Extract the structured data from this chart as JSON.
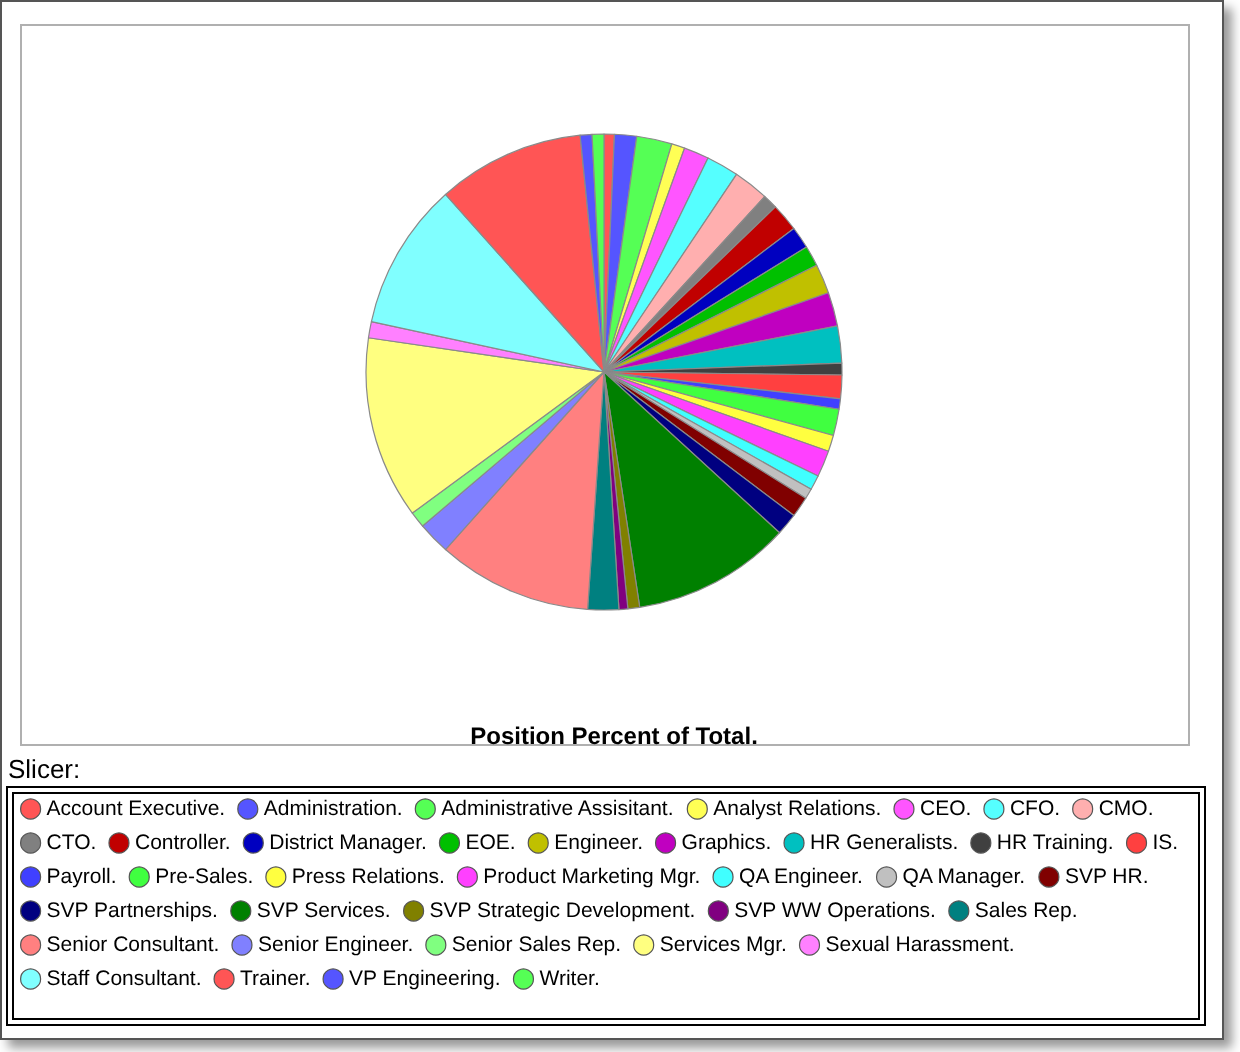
{
  "chart_data": {
    "type": "pie",
    "title": "Position Percent of Total.",
    "legend_title": "Slicer:",
    "legend": "bottom",
    "categories": [
      "Account Executive.",
      "Administration.",
      "Administrative Assisitant.",
      "Analyst Relations.",
      "CEO.",
      "CFO.",
      "CMO.",
      "CTO.",
      "Controller.",
      "District Manager.",
      "EOE.",
      "Engineer.",
      "Graphics.",
      "HR Generalists.",
      "HR Training.",
      "IS.",
      "Payroll.",
      "Pre-Sales.",
      "Press Relations.",
      "Product Marketing Mgr.",
      "QA Engineer.",
      "QA Manager.",
      "SVP HR.",
      "SVP Partnerships.",
      "SVP Services.",
      "SVP Strategic Development.",
      "SVP WW Operations.",
      "Sales Rep.",
      "Senior Consultant.",
      "Senior Engineer.",
      "Senior Sales Rep.",
      "Services Mgr.",
      "Sexual Harassment.",
      "Staff Consultant.",
      "Trainer.",
      "VP Engineering.",
      "Writer."
    ],
    "values": [
      0.7,
      1.5,
      2.4,
      0.9,
      1.7,
      2.2,
      2.4,
      1.0,
      1.9,
      1.5,
      1.4,
      2.0,
      2.3,
      2.5,
      0.8,
      1.6,
      0.7,
      1.8,
      1.1,
      1.8,
      1.0,
      0.7,
      1.4,
      1.5,
      10.8,
      0.8,
      0.6,
      2.1,
      10.5,
      2.2,
      1.1,
      12.4,
      1.1,
      10.0,
      10.0,
      0.8,
      0.8
    ],
    "colors": [
      "#ff5555",
      "#5555ff",
      "#55ff55",
      "#ffff55",
      "#ff55ff",
      "#55ffff",
      "#ffafaf",
      "#808080",
      "#c00000",
      "#0000c0",
      "#00c000",
      "#c0c000",
      "#c000c0",
      "#00c0c0",
      "#404040",
      "#ff4040",
      "#4040ff",
      "#40ff40",
      "#ffff40",
      "#ff40ff",
      "#40ffff",
      "#c0c0c0",
      "#800000",
      "#000080",
      "#008000",
      "#808000",
      "#800080",
      "#008080",
      "#ff8080",
      "#8080ff",
      "#80ff80",
      "#ffff80",
      "#ff80ff",
      "#80ffff",
      "#ff5555",
      "#5555ff",
      "#55ff55"
    ]
  }
}
